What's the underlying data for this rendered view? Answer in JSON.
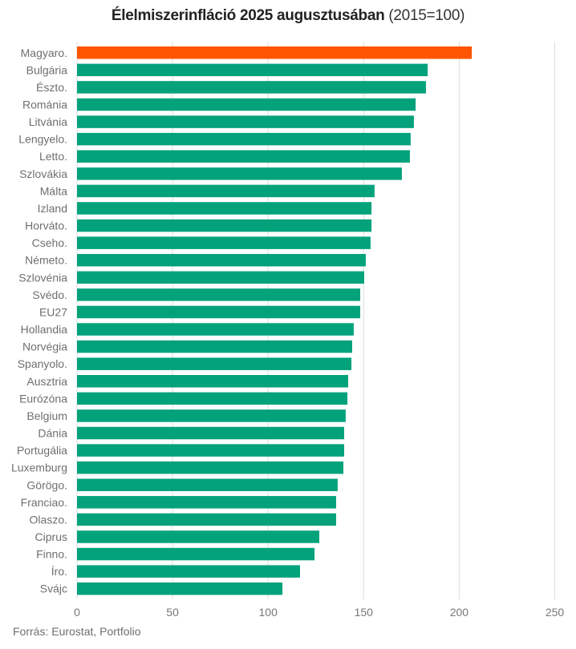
{
  "chart_data": {
    "type": "bar",
    "orientation": "horizontal",
    "title": "Élelmiszerinfláció 2025 augusztusában",
    "subtitle": "(2015=100)",
    "xlabel": "",
    "ylabel": "",
    "xlim": [
      0,
      250
    ],
    "xticks": [
      0,
      50,
      100,
      150,
      200,
      250
    ],
    "grid": true,
    "legend": "none",
    "highlight_color": "#ff5400",
    "bar_color": "#03a27b",
    "categories": [
      "Magyaro.",
      "Bulgária",
      "Észto.",
      "Románia",
      "Litvánia",
      "Lengyelo.",
      "Letto.",
      "Szlovákia",
      "Málta",
      "Izland",
      "Horváto.",
      "Cseho.",
      "Németo.",
      "Szlovénia",
      "Svédo.",
      "EU27",
      "Hollandia",
      "Norvégia",
      "Spanyolo.",
      "Ausztria",
      "Eurózóna",
      "Belgium",
      "Dánia",
      "Portugália",
      "Luxemburg",
      "Görögo.",
      "Franciao.",
      "Olaszo.",
      "Ciprus",
      "Finno.",
      "Íro.",
      "Svájc"
    ],
    "values": [
      206.6,
      183.5,
      182.6,
      177.2,
      176.3,
      174.6,
      174.2,
      170.0,
      155.7,
      154.1,
      154.1,
      153.6,
      151.1,
      150.3,
      148.2,
      148.2,
      144.8,
      144.0,
      143.6,
      141.9,
      141.5,
      140.6,
      139.8,
      139.8,
      139.4,
      136.4,
      135.6,
      135.6,
      126.8,
      124.3,
      116.7,
      107.5
    ],
    "highlighted": [
      "Magyaro."
    ]
  },
  "header": {
    "title_bold": "Élelmiszerinfláció 2025 augusztusában",
    "title_light": "(2015=100)"
  },
  "footer": {
    "source": "Forrás: Eurostat, Portfolio"
  }
}
